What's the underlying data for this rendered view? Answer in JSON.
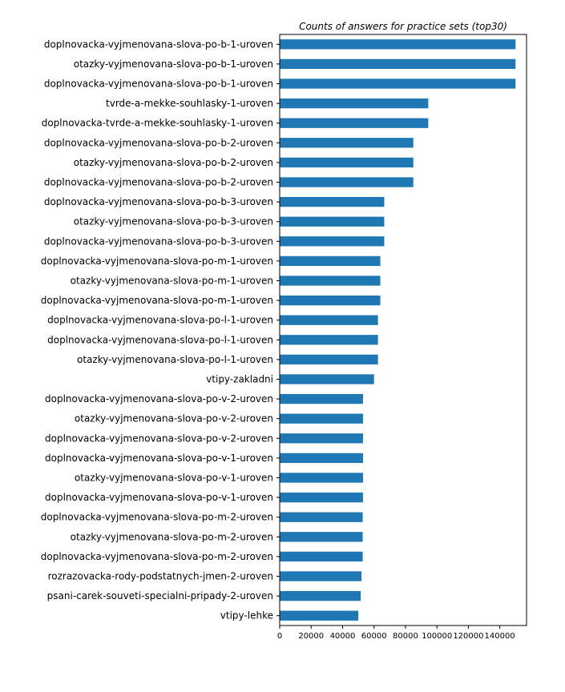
{
  "chart_data": {
    "type": "bar",
    "orientation": "horizontal",
    "title": "Counts of answers for practice sets (top30)",
    "xlabel": "",
    "ylabel": "",
    "xlim": [
      0,
      157000
    ],
    "xticks": [
      0,
      20000,
      40000,
      60000,
      80000,
      100000,
      120000,
      140000
    ],
    "grid": false,
    "bar_color": "#1f77b4",
    "categories": [
      "doplnovacka-vyjmenovana-slova-po-b-1-uroven",
      "otazky-vyjmenovana-slova-po-b-1-uroven",
      "doplnovacka-vyjmenovana-slova-po-b-1-uroven",
      "tvrde-a-mekke-souhlasky-1-uroven",
      "doplnovacka-tvrde-a-mekke-souhlasky-1-uroven",
      "doplnovacka-vyjmenovana-slova-po-b-2-uroven",
      "otazky-vyjmenovana-slova-po-b-2-uroven",
      "doplnovacka-vyjmenovana-slova-po-b-2-uroven",
      "doplnovacka-vyjmenovana-slova-po-b-3-uroven",
      "otazky-vyjmenovana-slova-po-b-3-uroven",
      "doplnovacka-vyjmenovana-slova-po-b-3-uroven",
      "doplnovacka-vyjmenovana-slova-po-m-1-uroven",
      "otazky-vyjmenovana-slova-po-m-1-uroven",
      "doplnovacka-vyjmenovana-slova-po-m-1-uroven",
      "doplnovacka-vyjmenovana-slova-po-l-1-uroven",
      "doplnovacka-vyjmenovana-slova-po-l-1-uroven",
      "otazky-vyjmenovana-slova-po-l-1-uroven",
      "vtipy-zakladni",
      "doplnovacka-vyjmenovana-slova-po-v-2-uroven",
      "otazky-vyjmenovana-slova-po-v-2-uroven",
      "doplnovacka-vyjmenovana-slova-po-v-2-uroven",
      "doplnovacka-vyjmenovana-slova-po-v-1-uroven",
      "otazky-vyjmenovana-slova-po-v-1-uroven",
      "doplnovacka-vyjmenovana-slova-po-v-1-uroven",
      "doplnovacka-vyjmenovana-slova-po-m-2-uroven",
      "otazky-vyjmenovana-slova-po-m-2-uroven",
      "doplnovacka-vyjmenovana-slova-po-m-2-uroven",
      "rozrazovacka-rody-podstatnych-jmen-2-uroven",
      "psani-carek-souveti-specialni-pripady-2-uroven",
      "vtipy-lehke"
    ],
    "values": [
      150000,
      150000,
      150000,
      94500,
      94500,
      85000,
      85000,
      85000,
      66500,
      66500,
      66500,
      64000,
      64000,
      64000,
      62500,
      62500,
      62500,
      60000,
      53000,
      53000,
      53000,
      53000,
      53000,
      53000,
      52800,
      52800,
      52800,
      52000,
      51500,
      50000
    ]
  }
}
